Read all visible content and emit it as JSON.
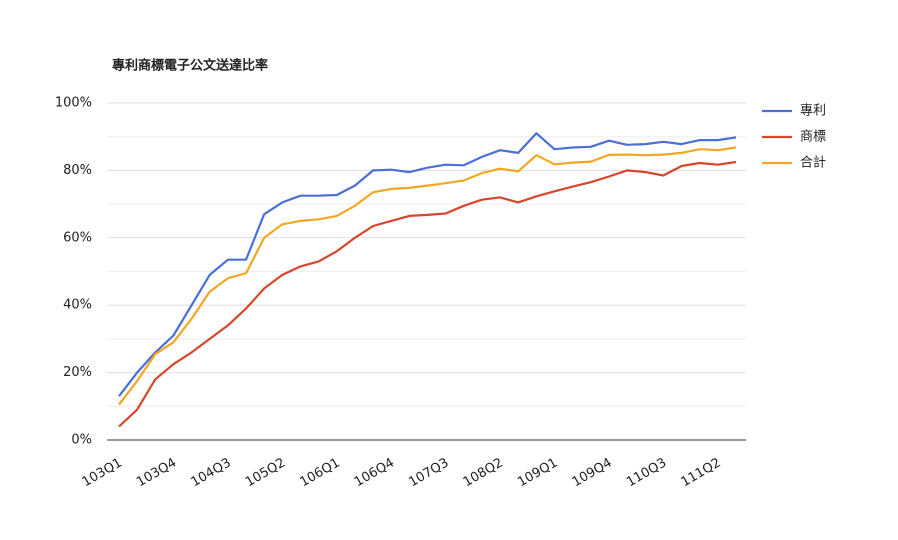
{
  "chart_data": {
    "type": "line",
    "title": "專利商標電子公文送達比率",
    "categories": [
      "103Q1",
      null,
      null,
      "103Q4",
      null,
      null,
      "104Q3",
      null,
      null,
      "105Q2",
      null,
      null,
      "106Q1",
      null,
      null,
      "106Q4",
      null,
      null,
      "107Q3",
      null,
      null,
      "108Q2",
      null,
      null,
      "109Q1",
      null,
      null,
      "109Q4",
      null,
      null,
      "110Q3",
      null,
      null,
      "111Q2",
      null
    ],
    "series": [
      {
        "name": "專利",
        "color": "#4a6fd8",
        "values": [
          13,
          20,
          26,
          31,
          40,
          49,
          53.5,
          53.5,
          67,
          70.5,
          72.5,
          72.5,
          72.7,
          75.5,
          80,
          80.2,
          79.5,
          80.8,
          81.7,
          81.5,
          84,
          86,
          85.2,
          91,
          86.3,
          86.8,
          87,
          88.8,
          87.6,
          87.8,
          88.5,
          87.8,
          89,
          89,
          89.8
        ]
      },
      {
        "name": "商標",
        "color": "#d9452b",
        "values": [
          4,
          9,
          18,
          22.5,
          26,
          30,
          34,
          39,
          45,
          49,
          51.5,
          53,
          56,
          60,
          63.5,
          65,
          66.5,
          66.8,
          67.2,
          69.5,
          71.3,
          72,
          70.5,
          72.3,
          73.8,
          75.2,
          76.5,
          78.2,
          80,
          79.5,
          78.5,
          81.3,
          82.2,
          81.7,
          82.5
        ]
      },
      {
        "name": "合計",
        "color": "#f5a623",
        "values": [
          10.5,
          17.5,
          25.5,
          29,
          36,
          44,
          48,
          49.5,
          60,
          64,
          65,
          65.5,
          66.5,
          69.5,
          73.5,
          74.5,
          74.8,
          75.5,
          76.2,
          77,
          79.2,
          80.5,
          79.7,
          84.5,
          81.8,
          82.3,
          82.6,
          84.6,
          84.7,
          84.5,
          84.7,
          85.2,
          86.3,
          86,
          86.8
        ]
      }
    ],
    "ylim": [
      0,
      100
    ],
    "yticks": [
      {
        "value": 0,
        "label": "0%"
      },
      {
        "value": 20,
        "label": "20%"
      },
      {
        "value": 40,
        "label": "40%"
      },
      {
        "value": 60,
        "label": "60%"
      },
      {
        "value": 80,
        "label": "80%"
      },
      {
        "value": 100,
        "label": "100%"
      }
    ],
    "minor_yticks": [
      10,
      30,
      50,
      70,
      90
    ],
    "grid": true,
    "legend": "right"
  }
}
